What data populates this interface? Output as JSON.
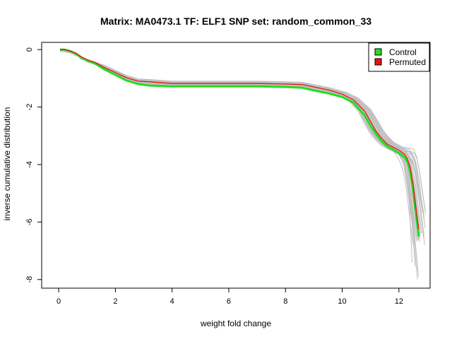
{
  "chart_data": {
    "type": "line",
    "title": "Matrix: MA0473.1 TF: ELF1 SNP set: random_common_33",
    "xlabel": "weight fold change",
    "ylabel": "inverse cumulative distribution",
    "xlim": [
      -0.6,
      13.1
    ],
    "ylim": [
      -8.3,
      0.25
    ],
    "x_ticks": [
      0,
      2,
      4,
      6,
      8,
      10,
      12
    ],
    "y_ticks": [
      0,
      -2,
      -4,
      -6,
      -8
    ],
    "grid": false,
    "legend_position": "top-right",
    "legend": [
      {
        "label": "Control",
        "color": "#22dd22"
      },
      {
        "label": "Permuted",
        "color": "#ee1111"
      }
    ],
    "series": [
      {
        "name": "Permuted",
        "color": "#ee1111",
        "x": [
          0.05,
          0.2,
          0.4,
          0.6,
          0.8,
          1.0,
          1.3,
          1.6,
          2.0,
          2.4,
          2.8,
          3.2,
          4.0,
          5.0,
          6.0,
          7.0,
          8.0,
          8.6,
          9.0,
          9.5,
          10.0,
          10.4,
          10.8,
          11.0,
          11.2,
          11.4,
          11.6,
          11.8,
          12.0,
          12.2,
          12.3,
          12.4,
          12.5,
          12.6,
          12.7
        ],
        "y": [
          0,
          0,
          -0.05,
          -0.12,
          -0.25,
          -0.35,
          -0.45,
          -0.62,
          -0.8,
          -0.98,
          -1.1,
          -1.12,
          -1.18,
          -1.18,
          -1.18,
          -1.18,
          -1.2,
          -1.22,
          -1.3,
          -1.4,
          -1.55,
          -1.75,
          -2.15,
          -2.5,
          -2.85,
          -3.1,
          -3.3,
          -3.4,
          -3.5,
          -3.65,
          -3.8,
          -4.1,
          -4.7,
          -5.5,
          -6.25
        ]
      },
      {
        "name": "Control",
        "color": "#22dd22",
        "x": [
          0.05,
          0.2,
          0.4,
          0.6,
          0.8,
          1.0,
          1.3,
          1.6,
          2.0,
          2.4,
          2.8,
          3.2,
          4.0,
          5.0,
          6.0,
          7.0,
          8.0,
          8.6,
          9.0,
          9.5,
          10.0,
          10.4,
          10.8,
          11.0,
          11.2,
          11.4,
          11.6,
          11.8,
          12.0,
          12.2,
          12.3,
          12.4,
          12.5,
          12.6,
          12.7
        ],
        "y": [
          0,
          0,
          -0.05,
          -0.14,
          -0.28,
          -0.38,
          -0.5,
          -0.68,
          -0.88,
          -1.08,
          -1.2,
          -1.25,
          -1.28,
          -1.28,
          -1.28,
          -1.28,
          -1.3,
          -1.33,
          -1.42,
          -1.52,
          -1.65,
          -1.85,
          -2.3,
          -2.65,
          -2.95,
          -3.2,
          -3.38,
          -3.48,
          -3.6,
          -3.75,
          -3.9,
          -4.25,
          -4.9,
          -5.7,
          -6.5
        ]
      }
    ]
  }
}
